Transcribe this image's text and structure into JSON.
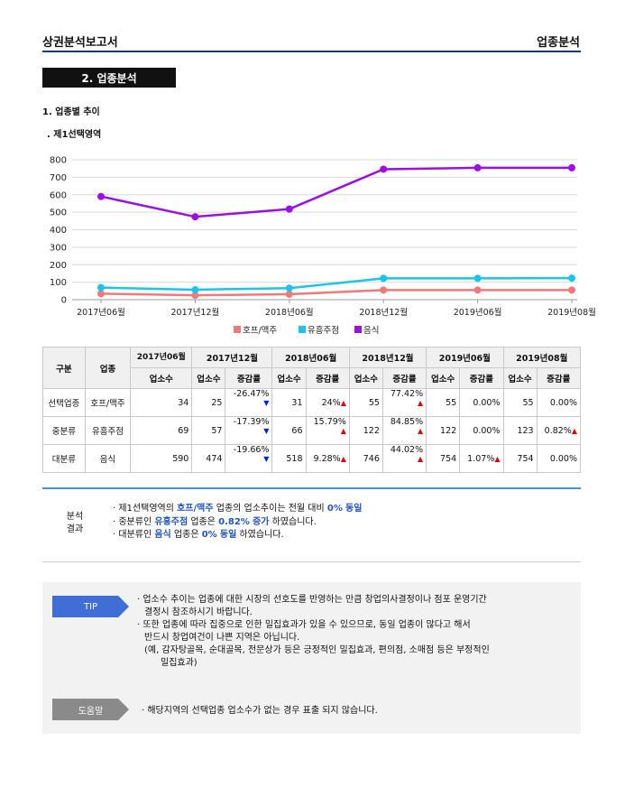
{
  "header": {
    "left_title": "상권분석보고서",
    "right_title": "업종분석"
  },
  "section_title": "2. 업종분석",
  "subsection_title": "1. 업종별 추이",
  "area_title": ". 제1선택영역",
  "chart_data": {
    "type": "line",
    "x": [
      "2017년06월",
      "2017년12월",
      "2018년06월",
      "2018년12월",
      "2019년06월",
      "2019년08월"
    ],
    "ylim": [
      0,
      800
    ],
    "yticks": [
      0,
      100,
      200,
      300,
      400,
      500,
      600,
      700,
      800
    ],
    "grid": true,
    "legend_position": "bottom",
    "series": [
      {
        "name": "호프/맥주",
        "values": [
          34,
          25,
          31,
          55,
          55,
          55
        ],
        "color": "#f07a7a"
      },
      {
        "name": "유흥주점",
        "values": [
          69,
          57,
          66,
          122,
          122,
          123
        ],
        "color": "#1cc4ec"
      },
      {
        "name": "음식",
        "values": [
          590,
          474,
          518,
          746,
          754,
          754
        ],
        "color": "#9b10e0"
      }
    ]
  },
  "table": {
    "col_gubun": "구분",
    "col_upjong": "업종",
    "periods": [
      "2017년06월",
      "2017년12월",
      "2018년06월",
      "2018년12월",
      "2019년06월",
      "2019년08월"
    ],
    "count_label": "업소수",
    "rate_label": "증감률",
    "rows": [
      {
        "gubun": "선택업종",
        "upjong": "호프/맥주",
        "counts": [
          "34",
          "25",
          "31",
          "55",
          "55",
          "55"
        ],
        "rates": [
          "-26.47%",
          "24%",
          "77.42%",
          "0.00%",
          "0.00%"
        ],
        "dirs": [
          "down",
          "up",
          "up",
          "none",
          "none"
        ]
      },
      {
        "gubun": "중분류",
        "upjong": "유흥주점",
        "counts": [
          "69",
          "57",
          "66",
          "122",
          "122",
          "123"
        ],
        "rates": [
          "-17.39%",
          "15.79%",
          "84.85%",
          "0.00%",
          "0.82%"
        ],
        "dirs": [
          "down",
          "up",
          "up",
          "none",
          "up"
        ]
      },
      {
        "gubun": "대분류",
        "upjong": "음식",
        "counts": [
          "590",
          "474",
          "518",
          "746",
          "754",
          "754"
        ],
        "rates": [
          "-19.66%",
          "9.28%",
          "44.02%",
          "1.07%",
          "0.00%"
        ],
        "dirs": [
          "down",
          "up",
          "up",
          "up",
          "none"
        ]
      }
    ]
  },
  "analysis": {
    "label_line1": "분석",
    "label_line2": "결과",
    "line1": {
      "p1": "· 제1선택영역의 ",
      "b1": "호프/맥주",
      "p2": " 업종의 업소추이는 전월 대비 ",
      "b2": "0%",
      "p3": " ",
      "b3": "동일"
    },
    "line2": {
      "p1": "· 중분류인 ",
      "b1": "유흥주점",
      "p2": " 업종은 ",
      "b2": "0.82%",
      "p3": " ",
      "b3": "증가",
      "p4": " 하였습니다."
    },
    "line3": {
      "p1": "· 대분류인 ",
      "b1": "음식",
      "p2": " 업종은 ",
      "b2": "0%",
      "p3": " ",
      "b3": "동일",
      "p4": " 하였습니다."
    }
  },
  "tip": {
    "button": "TIP",
    "line1": "· 업소수 추이는 업종에 대한 시장의 선호도를 반영하는 만큼 창업의사결정이나 점포 운영기간",
    "line2": "결정시 참조하시기 바랍니다.",
    "line3": "· 또한 업종에 따라 집중으로 인한 밀집효과가 있을 수 있으므로, 동일 업종이 많다고 해서",
    "line4": "반드시 창업여건이 나쁜 지역은 아닙니다.",
    "line5": "(예, 감자탕골목, 순대골목, 전문상가 등은 긍정적인 밀집효과, 편의점, 소매점 등은 부정적인",
    "line6": "밀집효과)"
  },
  "help": {
    "button": "도움말",
    "text": "· 해당지역의 선택업종 업소수가 없는 경우 표출 되지 않습니다."
  }
}
